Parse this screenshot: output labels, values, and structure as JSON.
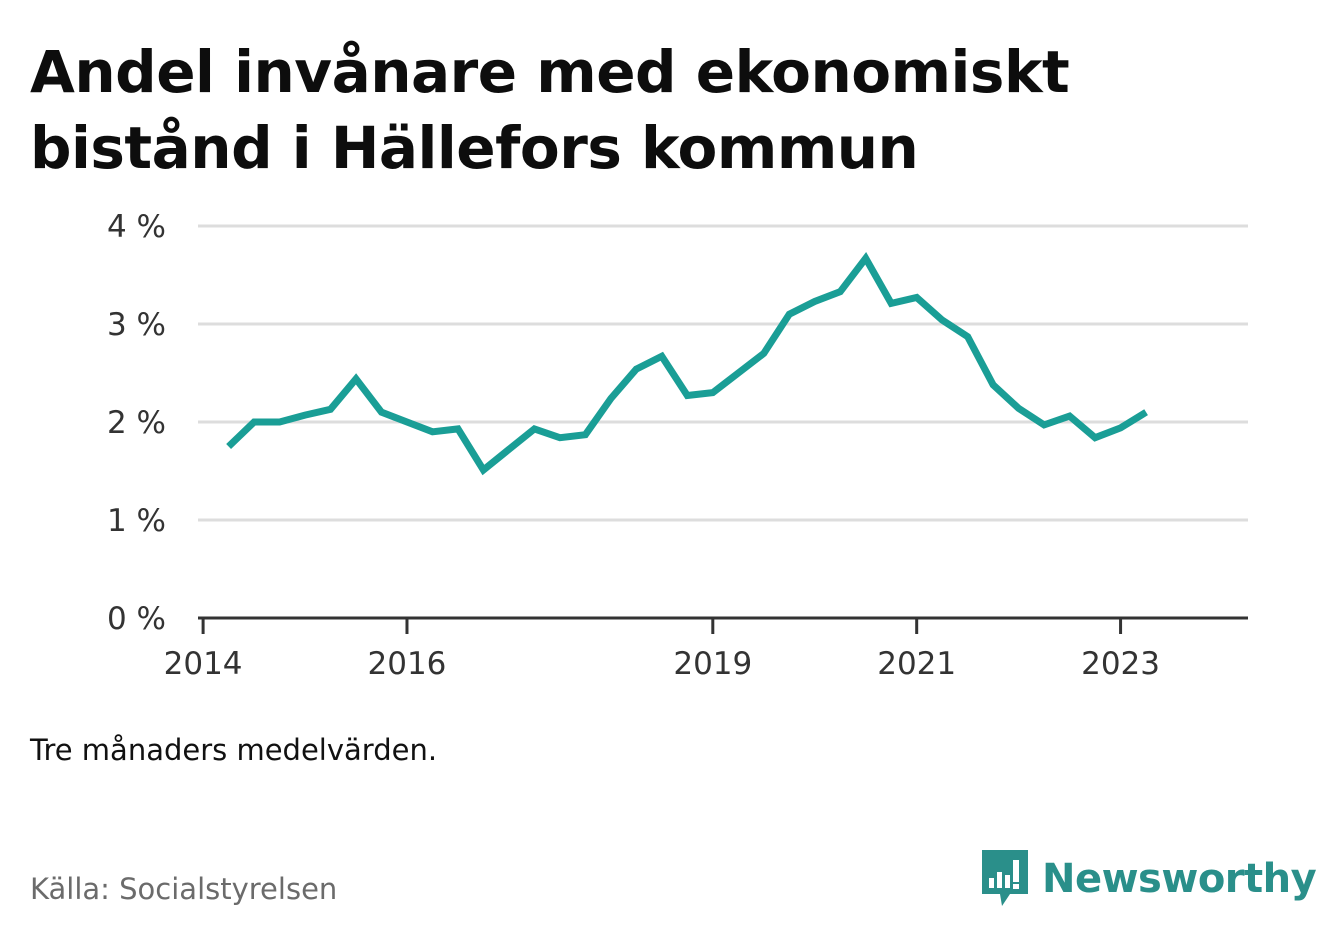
{
  "title": "Andel invånare med ekonomiskt bistånd i Hällefors kommun",
  "note": "Tre månaders medelvärden.",
  "source": "Källa: Socialstyrelsen",
  "brand": {
    "name": "Newsworthy",
    "icon": "bar-chart-speech-bubble-icon",
    "color": "#2a8f8a"
  },
  "colors": {
    "line": "#1a9e96",
    "grid": "#dddddd",
    "axis": "#333333",
    "label": "#333333"
  },
  "chart_data": {
    "type": "line",
    "title": "Andel invånare med ekonomiskt bistånd i Hällefors kommun",
    "xlabel": "",
    "ylabel": "",
    "ylim": [
      0,
      4
    ],
    "xlim": [
      2013.95,
      2024.25
    ],
    "grid": true,
    "y_ticks": [
      {
        "value": 0,
        "label": "0 %"
      },
      {
        "value": 1,
        "label": "1 %"
      },
      {
        "value": 2,
        "label": "2 %"
      },
      {
        "value": 3,
        "label": "3 %"
      },
      {
        "value": 4,
        "label": "4 %"
      }
    ],
    "x_ticks": [
      {
        "value": 2014,
        "label": "2014"
      },
      {
        "value": 2016,
        "label": "2016"
      },
      {
        "value": 2019,
        "label": "2019"
      },
      {
        "value": 2021,
        "label": "2021"
      },
      {
        "value": 2023,
        "label": "2023"
      }
    ],
    "series": [
      {
        "name": "",
        "x": [
          2014.25,
          2014.5,
          2014.75,
          2015.0,
          2015.25,
          2015.5,
          2015.75,
          2016.0,
          2016.25,
          2016.5,
          2016.75,
          2017.0,
          2017.25,
          2017.5,
          2017.75,
          2018.0,
          2018.25,
          2018.5,
          2018.75,
          2019.0,
          2019.25,
          2019.5,
          2019.75,
          2020.0,
          2020.25,
          2020.5,
          2020.75,
          2021.0,
          2021.25,
          2021.5,
          2021.75,
          2022.0,
          2022.25,
          2022.5,
          2022.75,
          2023.0,
          2023.25
        ],
        "values": [
          1.75,
          2.0,
          2.0,
          2.07,
          2.13,
          2.44,
          2.1,
          2.0,
          1.9,
          1.93,
          1.51,
          1.72,
          1.93,
          1.84,
          1.87,
          2.24,
          2.54,
          2.67,
          2.27,
          2.3,
          2.5,
          2.7,
          3.1,
          3.23,
          3.33,
          3.67,
          3.21,
          3.27,
          3.04,
          2.87,
          2.38,
          2.14,
          1.97,
          2.06,
          1.84,
          1.94,
          2.1
        ]
      }
    ]
  }
}
